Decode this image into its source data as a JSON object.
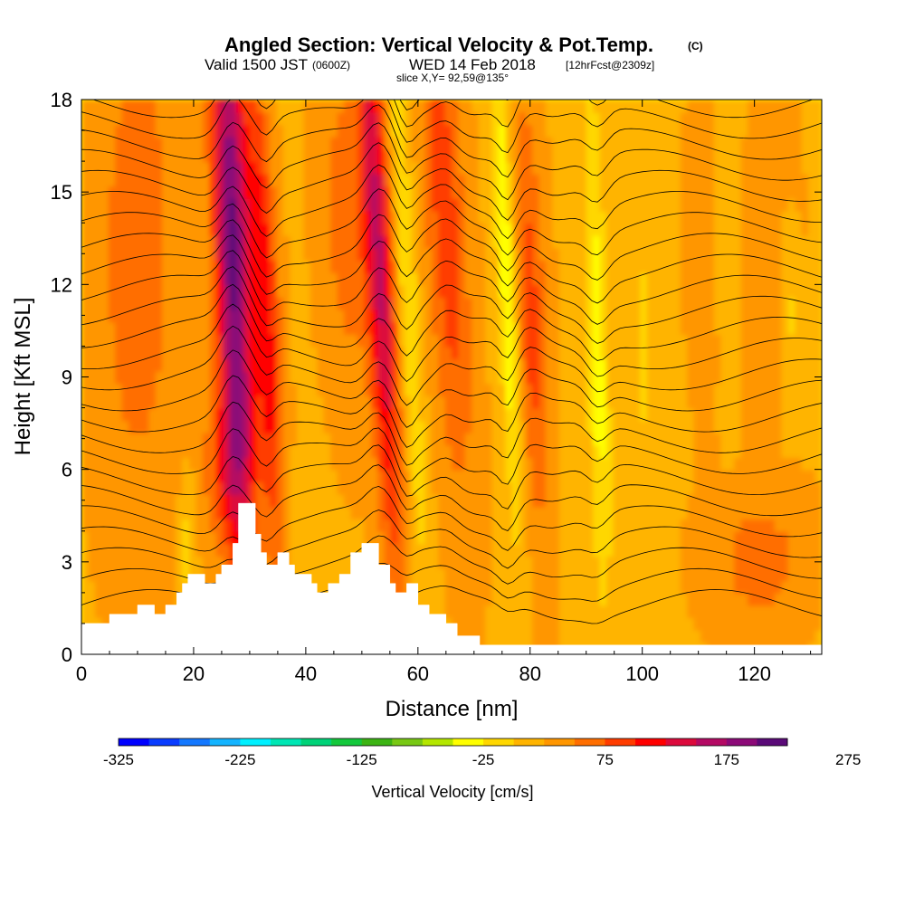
{
  "title": {
    "main": "Angled Section: Vertical Velocity & Pot.Temp.",
    "copyright": "(C)",
    "valid_prefix": "Valid 1500 JST",
    "valid_utc": "(0600Z)",
    "valid_date": "WED 14 Feb 2018",
    "forecast": "[12hrFcst@2309z]",
    "slice": "slice X,Y= 92,59@135°"
  },
  "chart_data": {
    "type": "heatmap",
    "xlabel": "Distance [nm]",
    "ylabel": "Height [Kft MSL]",
    "xlim": [
      0,
      132
    ],
    "ylim": [
      0,
      18
    ],
    "x_ticks": [
      "0",
      "20",
      "40",
      "60",
      "80",
      "100",
      "120"
    ],
    "y_ticks": [
      "0",
      "3",
      "6",
      "9",
      "12",
      "15",
      "18"
    ],
    "colorbar": {
      "label": "Vertical Velocity [cm/s]",
      "tick_labels": [
        "-325",
        "-225",
        "-125",
        "-25",
        "75",
        "175",
        "275"
      ],
      "colors": [
        "#0000ff",
        "#0a3cff",
        "#1478ff",
        "#14b4ff",
        "#00f0ff",
        "#00e6b4",
        "#00d278",
        "#14c83c",
        "#3cb414",
        "#78c814",
        "#b4e600",
        "#ffff00",
        "#ffd700",
        "#ffb400",
        "#ff9600",
        "#ff6e00",
        "#ff3c00",
        "#ff0000",
        "#dc0a3c",
        "#b40a64",
        "#8c0a78",
        "#5a0a78"
      ]
    },
    "updraft_peaks_nm": [
      27,
      33,
      53,
      65,
      80
    ],
    "downdraft_peaks_nm": [
      58,
      76,
      92,
      116,
      126
    ],
    "terrain": [
      {
        "x": 0,
        "z": 1.0
      },
      {
        "x": 5,
        "z": 1.0
      },
      {
        "x": 5,
        "z": 1.3
      },
      {
        "x": 10,
        "z": 1.3
      },
      {
        "x": 10,
        "z": 1.6
      },
      {
        "x": 13,
        "z": 1.6
      },
      {
        "x": 13,
        "z": 1.3
      },
      {
        "x": 15,
        "z": 1.3
      },
      {
        "x": 15,
        "z": 1.6
      },
      {
        "x": 17,
        "z": 1.6
      },
      {
        "x": 17,
        "z": 2.0
      },
      {
        "x": 18,
        "z": 2.0
      },
      {
        "x": 18,
        "z": 2.3
      },
      {
        "x": 19,
        "z": 2.3
      },
      {
        "x": 19,
        "z": 2.6
      },
      {
        "x": 22,
        "z": 2.6
      },
      {
        "x": 22,
        "z": 2.3
      },
      {
        "x": 24,
        "z": 2.3
      },
      {
        "x": 24,
        "z": 2.6
      },
      {
        "x": 25,
        "z": 2.6
      },
      {
        "x": 25,
        "z": 2.9
      },
      {
        "x": 27,
        "z": 2.9
      },
      {
        "x": 27,
        "z": 3.6
      },
      {
        "x": 28,
        "z": 3.6
      },
      {
        "x": 28,
        "z": 4.9
      },
      {
        "x": 31,
        "z": 4.9
      },
      {
        "x": 31,
        "z": 3.9
      },
      {
        "x": 32,
        "z": 3.9
      },
      {
        "x": 32,
        "z": 3.3
      },
      {
        "x": 33,
        "z": 3.3
      },
      {
        "x": 33,
        "z": 2.9
      },
      {
        "x": 35,
        "z": 2.9
      },
      {
        "x": 35,
        "z": 3.3
      },
      {
        "x": 37,
        "z": 3.3
      },
      {
        "x": 37,
        "z": 2.9
      },
      {
        "x": 38,
        "z": 2.9
      },
      {
        "x": 38,
        "z": 2.6
      },
      {
        "x": 41,
        "z": 2.6
      },
      {
        "x": 41,
        "z": 2.3
      },
      {
        "x": 42,
        "z": 2.3
      },
      {
        "x": 42,
        "z": 2.0
      },
      {
        "x": 44,
        "z": 2.0
      },
      {
        "x": 44,
        "z": 2.3
      },
      {
        "x": 46,
        "z": 2.3
      },
      {
        "x": 46,
        "z": 2.6
      },
      {
        "x": 48,
        "z": 2.6
      },
      {
        "x": 48,
        "z": 3.3
      },
      {
        "x": 50,
        "z": 3.3
      },
      {
        "x": 50,
        "z": 3.6
      },
      {
        "x": 53,
        "z": 3.6
      },
      {
        "x": 53,
        "z": 2.9
      },
      {
        "x": 55,
        "z": 2.9
      },
      {
        "x": 55,
        "z": 2.3
      },
      {
        "x": 56,
        "z": 2.3
      },
      {
        "x": 56,
        "z": 2.0
      },
      {
        "x": 58,
        "z": 2.0
      },
      {
        "x": 58,
        "z": 2.3
      },
      {
        "x": 60,
        "z": 2.3
      },
      {
        "x": 60,
        "z": 1.6
      },
      {
        "x": 62,
        "z": 1.6
      },
      {
        "x": 62,
        "z": 1.3
      },
      {
        "x": 65,
        "z": 1.3
      },
      {
        "x": 65,
        "z": 1.0
      },
      {
        "x": 67,
        "z": 1.0
      },
      {
        "x": 67,
        "z": 0.6
      },
      {
        "x": 71,
        "z": 0.6
      },
      {
        "x": 71,
        "z": 0.3
      },
      {
        "x": 132,
        "z": 0.3
      },
      {
        "x": 132,
        "z": 0.0
      },
      {
        "x": 0,
        "z": 0.0
      }
    ]
  }
}
